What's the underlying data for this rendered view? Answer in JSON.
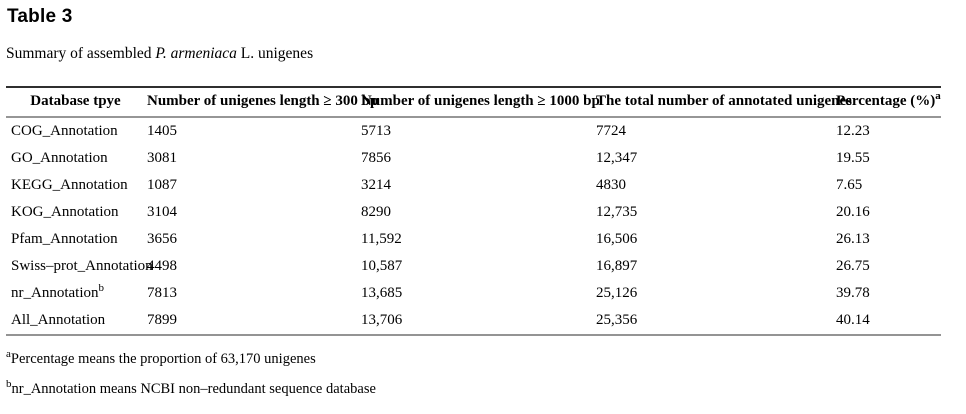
{
  "header": {
    "title": "Table 3",
    "caption_prefix": "Summary of assembled ",
    "caption_species": "P. armeniaca",
    "caption_suffix": " L. unigenes"
  },
  "table": {
    "columns": [
      {
        "label": "Database tpye"
      },
      {
        "label": "Number of unigenes length ≥ 300 bp"
      },
      {
        "label": "Number of unigenes length ≥ 1000 bp"
      },
      {
        "label": "The total number of annotated unigenes"
      },
      {
        "label": "Percentage (%)",
        "superscript": "a"
      }
    ],
    "rows": [
      {
        "database": "COG_Annotation",
        "unigenes_300bp": "1405",
        "unigenes_1000bp": "5713",
        "total_annotated": "7724",
        "percentage": "12.23"
      },
      {
        "database": "GO_Annotation",
        "unigenes_300bp": "3081",
        "unigenes_1000bp": "7856",
        "total_annotated": "12,347",
        "percentage": "19.55"
      },
      {
        "database": "KEGG_Annotation",
        "unigenes_300bp": "1087",
        "unigenes_1000bp": "3214",
        "total_annotated": "4830",
        "percentage": "7.65"
      },
      {
        "database": "KOG_Annotation",
        "unigenes_300bp": "3104",
        "unigenes_1000bp": "8290",
        "total_annotated": "12,735",
        "percentage": "20.16"
      },
      {
        "database": "Pfam_Annotation",
        "unigenes_300bp": "3656",
        "unigenes_1000bp": "11,592",
        "total_annotated": "16,506",
        "percentage": "26.13"
      },
      {
        "database": "Swiss–prot_Annotation",
        "unigenes_300bp": "4498",
        "unigenes_1000bp": "10,587",
        "total_annotated": "16,897",
        "percentage": "26.75"
      },
      {
        "database": "nr_Annotation",
        "superscript": "b",
        "unigenes_300bp": "7813",
        "unigenes_1000bp": "13,685",
        "total_annotated": "25,126",
        "percentage": "39.78"
      },
      {
        "database": "All_Annotation",
        "unigenes_300bp": "7899",
        "unigenes_1000bp": "13,706",
        "total_annotated": "25,356",
        "percentage": "40.14"
      }
    ]
  },
  "footnotes": [
    {
      "marker": "a",
      "text": "Percentage means the proportion of 63,170 unigenes"
    },
    {
      "marker": "b",
      "text": "nr_Annotation means NCBI non–redundant sequence database"
    }
  ]
}
